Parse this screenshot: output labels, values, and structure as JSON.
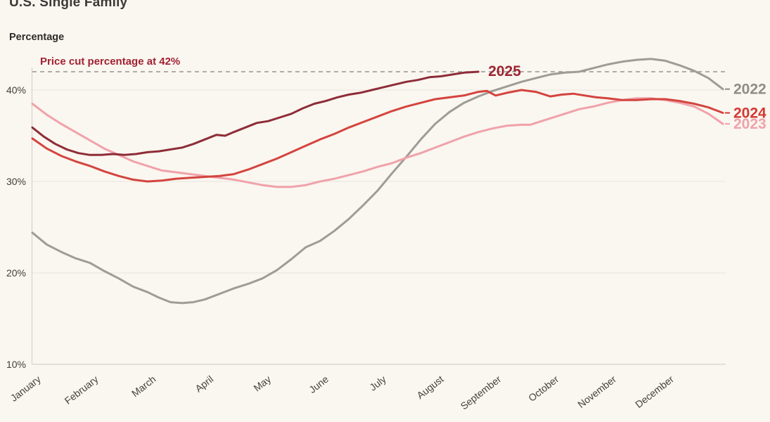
{
  "page": {
    "background": "#faf6f0"
  },
  "chart_data": {
    "type": "line",
    "title": "U.S. Single Family",
    "ylabel": "Percentage",
    "x_categories": [
      "January",
      "February",
      "March",
      "April",
      "May",
      "June",
      "July",
      "August",
      "September",
      "October",
      "November",
      "December"
    ],
    "y_ticks": [
      {
        "value": 40,
        "label": "40%"
      },
      {
        "value": 30,
        "label": "30%"
      },
      {
        "value": 20,
        "label": "20%"
      },
      {
        "value": 10,
        "label": "10%"
      }
    ],
    "ylim": [
      10,
      45
    ],
    "x_months": [
      0,
      12
    ],
    "grid": "horizontal",
    "legend_position": "line-end-labels",
    "reference_line": {
      "value": 42,
      "label": "Price cut percentage at 42%",
      "label_color": "#a02233",
      "dash_color": "#98938d"
    },
    "series": [
      {
        "name": "2022",
        "color": "#9f9c97",
        "label_color": "#8f8c87",
        "label_side": "right",
        "points": [
          [
            0,
            24.4
          ],
          [
            0.25,
            23.1
          ],
          [
            0.5,
            22.3
          ],
          [
            0.75,
            21.6
          ],
          [
            1,
            21.1
          ],
          [
            1.25,
            20.2
          ],
          [
            1.5,
            19.4
          ],
          [
            1.75,
            18.5
          ],
          [
            2,
            17.9
          ],
          [
            2.2,
            17.3
          ],
          [
            2.4,
            16.8
          ],
          [
            2.6,
            16.7
          ],
          [
            2.8,
            16.8
          ],
          [
            3,
            17.1
          ],
          [
            3.25,
            17.7
          ],
          [
            3.5,
            18.3
          ],
          [
            3.75,
            18.8
          ],
          [
            4,
            19.4
          ],
          [
            4.25,
            20.3
          ],
          [
            4.5,
            21.5
          ],
          [
            4.75,
            22.8
          ],
          [
            5,
            23.5
          ],
          [
            5.25,
            24.6
          ],
          [
            5.5,
            25.9
          ],
          [
            5.75,
            27.4
          ],
          [
            6,
            29.0
          ],
          [
            6.25,
            30.9
          ],
          [
            6.5,
            32.7
          ],
          [
            6.75,
            34.6
          ],
          [
            7,
            36.3
          ],
          [
            7.25,
            37.6
          ],
          [
            7.5,
            38.6
          ],
          [
            7.75,
            39.3
          ],
          [
            8,
            39.9
          ],
          [
            8.25,
            40.4
          ],
          [
            8.5,
            40.9
          ],
          [
            8.75,
            41.3
          ],
          [
            9,
            41.7
          ],
          [
            9.25,
            41.9
          ],
          [
            9.5,
            42.0
          ],
          [
            9.75,
            42.4
          ],
          [
            10,
            42.8
          ],
          [
            10.25,
            43.1
          ],
          [
            10.5,
            43.3
          ],
          [
            10.75,
            43.4
          ],
          [
            11,
            43.2
          ],
          [
            11.25,
            42.7
          ],
          [
            11.5,
            42.1
          ],
          [
            11.75,
            41.3
          ],
          [
            12,
            40.1
          ]
        ]
      },
      {
        "name": "2023",
        "color": "#f0a2aa",
        "label_color": "#f0a2ab",
        "label_side": "right",
        "points": [
          [
            0,
            38.5
          ],
          [
            0.25,
            37.3
          ],
          [
            0.5,
            36.3
          ],
          [
            0.75,
            35.4
          ],
          [
            1,
            34.5
          ],
          [
            1.25,
            33.6
          ],
          [
            1.5,
            32.9
          ],
          [
            1.75,
            32.2
          ],
          [
            2,
            31.7
          ],
          [
            2.25,
            31.2
          ],
          [
            2.5,
            31.0
          ],
          [
            2.75,
            30.8
          ],
          [
            3,
            30.6
          ],
          [
            3.25,
            30.4
          ],
          [
            3.5,
            30.2
          ],
          [
            3.75,
            29.9
          ],
          [
            4,
            29.6
          ],
          [
            4.25,
            29.4
          ],
          [
            4.5,
            29.4
          ],
          [
            4.75,
            29.6
          ],
          [
            5,
            30.0
          ],
          [
            5.25,
            30.3
          ],
          [
            5.5,
            30.7
          ],
          [
            5.75,
            31.1
          ],
          [
            6,
            31.6
          ],
          [
            6.25,
            32.0
          ],
          [
            6.5,
            32.6
          ],
          [
            6.75,
            33.1
          ],
          [
            7,
            33.7
          ],
          [
            7.25,
            34.3
          ],
          [
            7.5,
            34.9
          ],
          [
            7.75,
            35.4
          ],
          [
            8,
            35.8
          ],
          [
            8.25,
            36.1
          ],
          [
            8.5,
            36.2
          ],
          [
            8.65,
            36.2
          ],
          [
            8.85,
            36.6
          ],
          [
            9,
            36.9
          ],
          [
            9.25,
            37.4
          ],
          [
            9.5,
            37.9
          ],
          [
            9.75,
            38.2
          ],
          [
            10,
            38.6
          ],
          [
            10.25,
            38.9
          ],
          [
            10.5,
            39.1
          ],
          [
            10.75,
            39.1
          ],
          [
            11,
            38.9
          ],
          [
            11.25,
            38.6
          ],
          [
            11.5,
            38.2
          ],
          [
            11.75,
            37.4
          ],
          [
            12,
            36.3
          ]
        ]
      },
      {
        "name": "2024",
        "color": "#d4443e",
        "label_color": "#d4382f",
        "label_side": "right",
        "points": [
          [
            0,
            34.7
          ],
          [
            0.25,
            33.6
          ],
          [
            0.5,
            32.8
          ],
          [
            0.75,
            32.2
          ],
          [
            1,
            31.7
          ],
          [
            1.25,
            31.1
          ],
          [
            1.5,
            30.6
          ],
          [
            1.75,
            30.2
          ],
          [
            2,
            30.0
          ],
          [
            2.25,
            30.1
          ],
          [
            2.5,
            30.3
          ],
          [
            2.75,
            30.4
          ],
          [
            3,
            30.5
          ],
          [
            3.25,
            30.6
          ],
          [
            3.5,
            30.8
          ],
          [
            3.75,
            31.3
          ],
          [
            4,
            31.9
          ],
          [
            4.25,
            32.5
          ],
          [
            4.5,
            33.2
          ],
          [
            4.75,
            33.9
          ],
          [
            5,
            34.6
          ],
          [
            5.25,
            35.2
          ],
          [
            5.5,
            35.9
          ],
          [
            5.75,
            36.5
          ],
          [
            6,
            37.1
          ],
          [
            6.25,
            37.7
          ],
          [
            6.5,
            38.2
          ],
          [
            6.75,
            38.6
          ],
          [
            7,
            39.0
          ],
          [
            7.25,
            39.2
          ],
          [
            7.5,
            39.4
          ],
          [
            7.75,
            39.8
          ],
          [
            7.9,
            39.9
          ],
          [
            8.05,
            39.4
          ],
          [
            8.25,
            39.7
          ],
          [
            8.5,
            40.0
          ],
          [
            8.75,
            39.8
          ],
          [
            9,
            39.3
          ],
          [
            9.2,
            39.5
          ],
          [
            9.4,
            39.6
          ],
          [
            9.6,
            39.4
          ],
          [
            9.8,
            39.2
          ],
          [
            10,
            39.1
          ],
          [
            10.25,
            38.9
          ],
          [
            10.5,
            38.9
          ],
          [
            10.75,
            39.0
          ],
          [
            11,
            39.0
          ],
          [
            11.25,
            38.8
          ],
          [
            11.5,
            38.5
          ],
          [
            11.75,
            38.1
          ],
          [
            12,
            37.5
          ]
        ]
      },
      {
        "name": "2025",
        "color": "#8e2c37",
        "label_color": "#9c2531",
        "label_side": "end",
        "points": [
          [
            0,
            35.9
          ],
          [
            0.2,
            34.9
          ],
          [
            0.4,
            34.1
          ],
          [
            0.6,
            33.5
          ],
          [
            0.8,
            33.1
          ],
          [
            1,
            32.9
          ],
          [
            1.2,
            32.9
          ],
          [
            1.4,
            33.0
          ],
          [
            1.6,
            32.9
          ],
          [
            1.8,
            33.0
          ],
          [
            2,
            33.2
          ],
          [
            2.2,
            33.3
          ],
          [
            2.4,
            33.5
          ],
          [
            2.6,
            33.7
          ],
          [
            2.8,
            34.1
          ],
          [
            3,
            34.6
          ],
          [
            3.2,
            35.1
          ],
          [
            3.35,
            35.0
          ],
          [
            3.5,
            35.4
          ],
          [
            3.7,
            35.9
          ],
          [
            3.9,
            36.4
          ],
          [
            4.1,
            36.6
          ],
          [
            4.3,
            37.0
          ],
          [
            4.5,
            37.4
          ],
          [
            4.7,
            38.0
          ],
          [
            4.9,
            38.5
          ],
          [
            5.1,
            38.8
          ],
          [
            5.3,
            39.2
          ],
          [
            5.5,
            39.5
          ],
          [
            5.7,
            39.7
          ],
          [
            5.9,
            40.0
          ],
          [
            6.1,
            40.3
          ],
          [
            6.3,
            40.6
          ],
          [
            6.5,
            40.9
          ],
          [
            6.7,
            41.1
          ],
          [
            6.9,
            41.4
          ],
          [
            7.1,
            41.5
          ],
          [
            7.3,
            41.7
          ],
          [
            7.5,
            41.9
          ],
          [
            7.75,
            42.0
          ]
        ]
      }
    ]
  }
}
